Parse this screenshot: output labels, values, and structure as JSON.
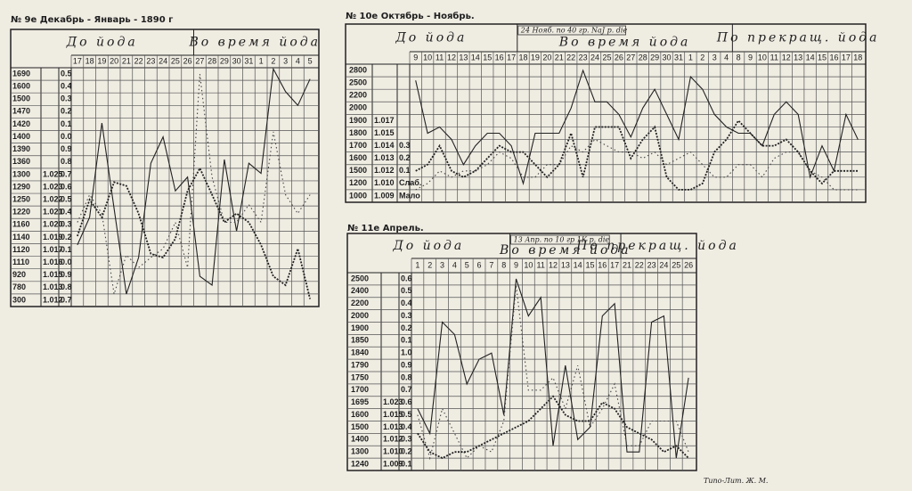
{
  "chart_data": [
    {
      "type": "line",
      "title": "№ 9е Декабрь - Январь - 1890 г",
      "headers": [
        "До йода",
        "Во время йода"
      ],
      "categories": [
        "17",
        "18",
        "19",
        "20",
        "21",
        "22",
        "23",
        "24",
        "25",
        "26",
        "27",
        "28",
        "29",
        "30",
        "31",
        "1",
        "2",
        "3",
        "4",
        "5"
      ],
      "row_labels": [
        [
          "1690",
          "1600",
          "1500",
          "1470",
          "1420",
          "1400",
          "1390",
          "1360",
          "1300",
          "1290",
          "1250",
          "1220",
          "1160",
          "1140",
          "1120",
          "1110",
          "920",
          "780",
          "300"
        ],
        [
          null,
          null,
          null,
          null,
          null,
          null,
          null,
          null,
          "1.025",
          "1.023",
          "1.022",
          "1.021",
          "1.020",
          "1.019",
          "1.017",
          "1.016",
          "1.015",
          "1.013",
          "1.012"
        ],
        [
          "0.5",
          "0.4",
          "0.3",
          "0.2",
          "0.1",
          "0.0",
          "0.9",
          "0.8",
          "0.7",
          "0.6",
          "0.5",
          "0.4",
          "0.3",
          "0.2",
          "0.1",
          "0.0",
          "0.9",
          "0.8",
          "0.7"
        ]
      ],
      "ylim": [
        19,
        0
      ],
      "series": [
        {
          "color": "#222",
          "style": "solid",
          "values": [
            14.1,
            11.9,
            4.4,
            11.2,
            18,
            15.1,
            7.6,
            5.5,
            9.8,
            8.7,
            16.6,
            17.3,
            7.3,
            13,
            7.6,
            8.4,
            0.1,
            1.9,
            3,
            0.9
          ]
        },
        {
          "color": "#444",
          "style": "dotted",
          "values": [
            12.3,
            10.1,
            11.6,
            18,
            14.9,
            15.9,
            15.1,
            14.4,
            12.3,
            15.9,
            0.5,
            8.7,
            12.3,
            12.3,
            10.9,
            12.3,
            5.1,
            10.1,
            11.6,
            10.1
          ]
        },
        {
          "color": "#222",
          "style": "dense",
          "values": [
            13.4,
            10.5,
            11.9,
            9.1,
            9.4,
            11.6,
            14.8,
            15.1,
            13.6,
            9.8,
            8,
            10.1,
            12.3,
            11.6,
            12.3,
            14.1,
            16.6,
            17.3,
            14.4,
            18.4
          ]
        }
      ]
    },
    {
      "type": "line",
      "title": "№ 10е Октябрь - Ноябрь.",
      "headers": [
        "До йода",
        "Во время йода",
        "По прекращ. йода"
      ],
      "annotation": "24 Нояб. по 40 гр. NaJ р. die",
      "categories": [
        "9",
        "10",
        "11",
        "12",
        "13",
        "14",
        "15",
        "16",
        "17",
        "18",
        "19",
        "20",
        "21",
        "22",
        "23",
        "24",
        "25",
        "26",
        "27",
        "28",
        "29",
        "30",
        "31",
        "1",
        "2",
        "3",
        "4",
        "8",
        "9",
        "10",
        "11",
        "12",
        "13",
        "14",
        "15",
        "16",
        "17",
        "18"
      ],
      "row_labels": [
        [
          "2800",
          "2500",
          "2200",
          "2000",
          "1900",
          "1800",
          "1700",
          "1600",
          "1500",
          "1200",
          "1000"
        ],
        [
          null,
          null,
          null,
          null,
          "1.017",
          "1.015",
          "1.014",
          "1.013",
          "1.012",
          "1.010",
          "1.009"
        ],
        [
          null,
          null,
          null,
          null,
          null,
          null,
          "0.3",
          "0.2",
          "0.1",
          "Слаб.",
          "Мало"
        ]
      ],
      "ylim": [
        11,
        0
      ],
      "series": [
        {
          "color": "#222",
          "style": "solid",
          "values": [
            1.3,
            5.5,
            5,
            6,
            8,
            6.5,
            5.5,
            5.5,
            6.5,
            9.5,
            5.5,
            5.5,
            5.5,
            3.5,
            0.5,
            3,
            3,
            4,
            5.8,
            3.5,
            2,
            4,
            6,
            1,
            2,
            4,
            5,
            5.5,
            5.5,
            6.5,
            4,
            3,
            4,
            9,
            6.5,
            8.5,
            4,
            6
          ]
        },
        {
          "color": "#444",
          "style": "dotted",
          "values": [
            10,
            9.5,
            8.5,
            9,
            8.5,
            8.5,
            8,
            7,
            7.5,
            9,
            9,
            8,
            8,
            6.5,
            7,
            6,
            6.5,
            7,
            7,
            7.5,
            7,
            8,
            7.5,
            7,
            8,
            9,
            9,
            8,
            8,
            9,
            7.5,
            7,
            7,
            8.5,
            9,
            10,
            10,
            10
          ]
        },
        {
          "color": "#222",
          "style": "dense",
          "values": [
            8.5,
            8,
            6.5,
            8.5,
            9,
            8.5,
            7.5,
            6.5,
            7,
            7,
            8,
            9,
            8,
            5.5,
            9,
            5,
            5,
            5,
            7.5,
            6,
            5,
            9,
            10,
            10,
            9.5,
            7,
            6,
            4.5,
            5.5,
            6.5,
            6.5,
            6,
            7,
            8.5,
            9.5,
            8.5,
            8.5,
            8.5
          ]
        }
      ]
    },
    {
      "type": "line",
      "title": "№ 11е Апрель.",
      "headers": [
        "До йода",
        "Во время йода",
        "По прекращ. йода"
      ],
      "annotation": "13 Апр. по 10 гр 1К р. die",
      "categories": [
        "1",
        "2",
        "3",
        "4",
        "5",
        "6",
        "7",
        "8",
        "9",
        "10",
        "11",
        "12",
        "13",
        "14",
        "15",
        "16",
        "17",
        "21",
        "22",
        "23",
        "24",
        "25",
        "26"
      ],
      "row_labels": [
        [
          "2500",
          "2400",
          "2200",
          "2000",
          "1900",
          "1850",
          "1840",
          "1790",
          "1750",
          "1700",
          "1695",
          "1600",
          "1500",
          "1400",
          "1300",
          "1240"
        ],
        [
          null,
          null,
          null,
          null,
          null,
          null,
          null,
          null,
          null,
          null,
          "1.023",
          "1.015",
          "1.013",
          "1.012",
          "1.010",
          "1.009"
        ],
        [
          "0.6",
          "0.5",
          "0.4",
          "0.3",
          "0.2",
          "0.1",
          "1.0",
          "0.9",
          "0.8",
          "0.7",
          "0.6",
          "0.5",
          "0.4",
          "0.3",
          "0.2",
          "0.1"
        ]
      ],
      "ylim": [
        16,
        0
      ],
      "series": [
        {
          "color": "#222",
          "style": "solid",
          "values": [
            11,
            13,
            4,
            5,
            9,
            7,
            6.5,
            11.5,
            0.5,
            3.5,
            2,
            14,
            7.5,
            13.5,
            12.5,
            3.5,
            2.5,
            14.5,
            14.5,
            4,
            3.5,
            15,
            8.5
          ]
        },
        {
          "color": "#444",
          "style": "dotted",
          "values": [
            11.5,
            15,
            11,
            13,
            15,
            14,
            14.5,
            12,
            1,
            9.5,
            9.5,
            8.5,
            11,
            7.5,
            12.5,
            11,
            9,
            14,
            14,
            12,
            12,
            12,
            14.5
          ]
        },
        {
          "color": "#222",
          "style": "dense",
          "values": [
            13,
            14.5,
            15,
            14.5,
            14.5,
            14,
            13.5,
            13,
            12.5,
            12,
            11,
            10,
            11.5,
            12,
            12,
            10.5,
            11,
            12.5,
            13,
            13.5,
            14.5,
            14,
            15
          ]
        }
      ]
    }
  ],
  "footer": "Типо-Лит. Ж. М."
}
